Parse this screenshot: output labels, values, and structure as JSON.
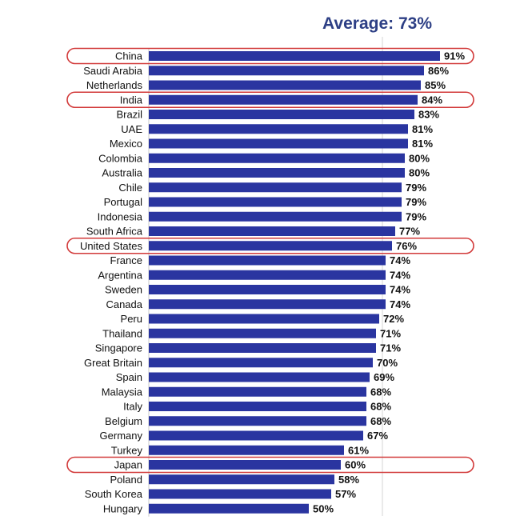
{
  "title": "Average: 73%",
  "colors": {
    "bar": "#2a35a0",
    "highlight": "#d23a3a",
    "title": "#2d3f85",
    "axis": "#c8c8c8",
    "average_line": "#d4d4d4"
  },
  "chart_data": {
    "type": "bar",
    "orientation": "horizontal",
    "title": "Average: 73%",
    "xlabel": "",
    "ylabel": "",
    "xlim": [
      0,
      100
    ],
    "grid": false,
    "legend": "none",
    "average": 73,
    "value_suffix": "%",
    "categories": [
      "China",
      "Saudi Arabia",
      "Netherlands",
      "India",
      "Brazil",
      "UAE",
      "Mexico",
      "Colombia",
      "Australia",
      "Chile",
      "Portugal",
      "Indonesia",
      "South Africa",
      "United States",
      "France",
      "Argentina",
      "Sweden",
      "Canada",
      "Peru",
      "Thailand",
      "Singapore",
      "Great Britain",
      "Spain",
      "Malaysia",
      "Italy",
      "Belgium",
      "Germany",
      "Turkey",
      "Japan",
      "Poland",
      "South Korea",
      "Hungary"
    ],
    "values": [
      91,
      86,
      85,
      84,
      83,
      81,
      81,
      80,
      80,
      79,
      79,
      79,
      77,
      76,
      74,
      74,
      74,
      74,
      72,
      71,
      71,
      70,
      69,
      68,
      68,
      68,
      67,
      61,
      60,
      58,
      57,
      50
    ],
    "highlighted": [
      "China",
      "India",
      "United States",
      "Japan"
    ]
  }
}
